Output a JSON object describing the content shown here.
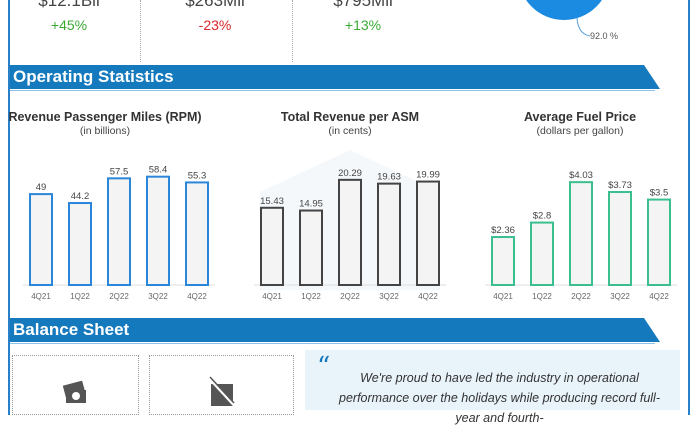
{
  "top_stats": [
    {
      "value": "$12.1Bil",
      "change": "+45%",
      "color": "#3aaa35"
    },
    {
      "value": "$263Mil",
      "change": "-23%",
      "color": "#d9262c"
    },
    {
      "value": "$795Mil",
      "change": "+13%",
      "color": "#3aaa35"
    }
  ],
  "pie": {
    "label": "92.0 %",
    "value": 92.0,
    "color": "#1a8be0"
  },
  "sections": {
    "operating": "Operating Statistics",
    "balance": "Balance Sheet"
  },
  "colors": {
    "banner": "#1479bd",
    "rpm": "#2a86d9",
    "asm": "#444444",
    "fuel": "#3bbf8f"
  },
  "chart_data": [
    {
      "type": "bar",
      "title": "Revenue Passenger Miles (RPM)",
      "subtitle": "(in billions)",
      "categories": [
        "4Q21",
        "1Q22",
        "2Q22",
        "3Q22",
        "4Q22"
      ],
      "values": [
        49,
        44.2,
        57.5,
        58.4,
        55.3
      ],
      "labels": [
        "49",
        "44.2",
        "57.5",
        "58.4",
        "55.3"
      ],
      "ylim": [
        0,
        62
      ]
    },
    {
      "type": "bar",
      "title": "Total Revenue per ASM",
      "subtitle": "(in cents)",
      "categories": [
        "4Q21",
        "1Q22",
        "2Q22",
        "3Q22",
        "4Q22"
      ],
      "values": [
        15.43,
        14.95,
        20.29,
        19.63,
        19.99
      ],
      "labels": [
        "15.43",
        "14.95",
        "20.29",
        "19.63",
        "19.99"
      ],
      "ylim": [
        2,
        22
      ]
    },
    {
      "type": "bar",
      "title": "Average Fuel Price",
      "subtitle": "(dollars per gallon)",
      "categories": [
        "4Q21",
        "1Q22",
        "2Q22",
        "3Q22",
        "4Q22"
      ],
      "values": [
        2.36,
        2.8,
        4.03,
        3.73,
        3.5
      ],
      "labels": [
        "$2.36",
        "$2.8",
        "$4.03",
        "$3.73",
        "$3.5"
      ],
      "ylim": [
        0.9,
        4.4
      ]
    }
  ],
  "quote": {
    "mark": "“",
    "text": "We're proud to have led the industry in operational performance over the holidays while producing record full-year and fourth-"
  }
}
